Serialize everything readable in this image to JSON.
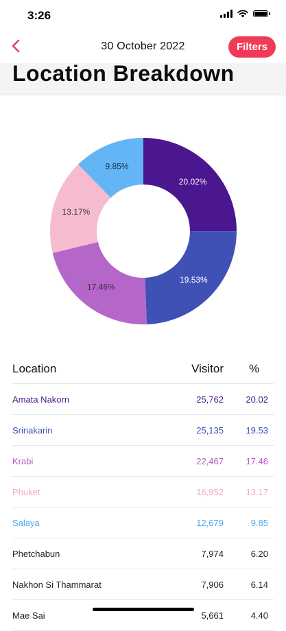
{
  "status_bar": {
    "time": "3:26"
  },
  "nav": {
    "date": "30 October 2022",
    "filters_label": "Filters"
  },
  "page": {
    "title": "Location Breakdown"
  },
  "colors": {
    "accent": "#ef3b57"
  },
  "chart_data": {
    "type": "pie",
    "donut": true,
    "slices": [
      {
        "name": "Amata Nakorn",
        "value": 20.02,
        "label": "20.02%",
        "color": "#4a1790",
        "label_color": "#ffffff"
      },
      {
        "name": "Srinakarin",
        "value": 19.53,
        "label": "19.53%",
        "color": "#3f51b5",
        "label_color": "#ffffff"
      },
      {
        "name": "Krabi",
        "value": 17.46,
        "label": "17.46%",
        "color": "#b567c9",
        "label_color": "#3a2a3f"
      },
      {
        "name": "Phuket",
        "value": 13.17,
        "label": "13.17%",
        "color": "#f6bbd0",
        "label_color": "#4a3a40"
      },
      {
        "name": "Salaya",
        "value": 9.85,
        "label": "9.85%",
        "color": "#64b5f6",
        "label_color": "#1d3547"
      }
    ]
  },
  "table": {
    "headers": {
      "location": "Location",
      "visitor": "Visitor",
      "percent": "%"
    },
    "rows": [
      {
        "location": "Amata Nakorn",
        "visitor": "25,762",
        "percent": "20.02",
        "color": "#4a1790"
      },
      {
        "location": "Srinakarin",
        "visitor": "25,135",
        "percent": "19.53",
        "color": "#3f51b5"
      },
      {
        "location": "Krabi",
        "visitor": "22,467",
        "percent": "17.46",
        "color": "#b35ac6"
      },
      {
        "location": "Phuket",
        "visitor": "16,952",
        "percent": "13.17",
        "color": "#f2a9c2"
      },
      {
        "location": "Salaya",
        "visitor": "12,679",
        "percent": "9.85",
        "color": "#4aa6ef"
      },
      {
        "location": "Phetchabun",
        "visitor": "7,974",
        "percent": "6.20",
        "color": "#222222"
      },
      {
        "location": "Nakhon Si Thammarat",
        "visitor": "7,906",
        "percent": "6.14",
        "color": "#222222"
      },
      {
        "location": "Mae Sai",
        "visitor": "5,661",
        "percent": "4.40",
        "color": "#222222"
      }
    ]
  }
}
